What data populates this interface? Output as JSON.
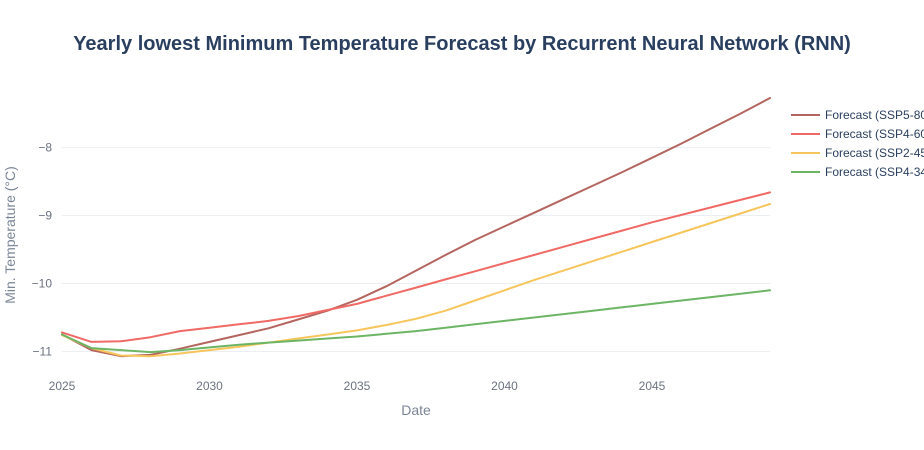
{
  "chart_data": {
    "type": "line",
    "title": "Yearly lowest Minimum Temperature Forecast by Recurrent Neural Network (RNN)",
    "xlabel": "Date",
    "ylabel": "Min. Temperature (°C)",
    "xlim": [
      2025,
      2049
    ],
    "ylim": [
      -11.42,
      -7.3
    ],
    "xticks": [
      2025,
      2030,
      2035,
      2040,
      2045
    ],
    "xtick_labels": [
      "2025",
      "2030",
      "2035",
      "2040",
      "2045"
    ],
    "yticks": [
      -8,
      -9,
      -10,
      -11
    ],
    "ytick_labels": [
      "−8",
      "−9",
      "−10",
      "−11"
    ],
    "grid": true,
    "legend_position": "right",
    "x": [
      2025,
      2026,
      2027,
      2028,
      2029,
      2030,
      2031,
      2032,
      2033,
      2034,
      2035,
      2036,
      2037,
      2038,
      2039,
      2040,
      2041,
      2042,
      2043,
      2044,
      2045,
      2046,
      2047,
      2048,
      2049
    ],
    "series": [
      {
        "name": "Forecast (SSP5-80",
        "color": "#b5655f",
        "values": [
          -10.75,
          -10.98,
          -11.07,
          -11.05,
          -10.96,
          -10.86,
          -10.76,
          -10.66,
          -10.53,
          -10.4,
          -10.24,
          -10.04,
          -9.81,
          -9.58,
          -9.36,
          -9.16,
          -8.96,
          -8.76,
          -8.56,
          -8.36,
          -8.15,
          -7.94,
          -7.72,
          -7.5,
          -7.27
        ]
      },
      {
        "name": "Forecast (SSP4-60",
        "color": "#ef6a65",
        "values": [
          -10.72,
          -10.86,
          -10.85,
          -10.79,
          -10.7,
          -10.65,
          -10.6,
          -10.55,
          -10.48,
          -10.39,
          -10.3,
          -10.18,
          -10.06,
          -9.94,
          -9.82,
          -9.7,
          -9.58,
          -9.46,
          -9.34,
          -9.22,
          -9.1,
          -8.99,
          -8.88,
          -8.77,
          -8.66
        ]
      },
      {
        "name": "Forecast (SSP2-45",
        "color": "#f6c65c",
        "values": [
          -10.76,
          -10.95,
          -11.06,
          -11.07,
          -11.03,
          -10.98,
          -10.93,
          -10.87,
          -10.81,
          -10.75,
          -10.69,
          -10.61,
          -10.52,
          -10.4,
          -10.25,
          -10.1,
          -9.95,
          -9.81,
          -9.67,
          -9.53,
          -9.39,
          -9.25,
          -9.11,
          -8.97,
          -8.83
        ]
      },
      {
        "name": "Forecast (SSP4-34",
        "color": "#6cb565",
        "values": [
          -10.75,
          -10.95,
          -10.98,
          -11.01,
          -10.98,
          -10.94,
          -10.9,
          -10.87,
          -10.84,
          -10.81,
          -10.78,
          -10.74,
          -10.7,
          -10.65,
          -10.6,
          -10.55,
          -10.5,
          -10.45,
          -10.4,
          -10.35,
          -10.3,
          -10.25,
          -10.2,
          -10.15,
          -10.1
        ]
      }
    ]
  }
}
